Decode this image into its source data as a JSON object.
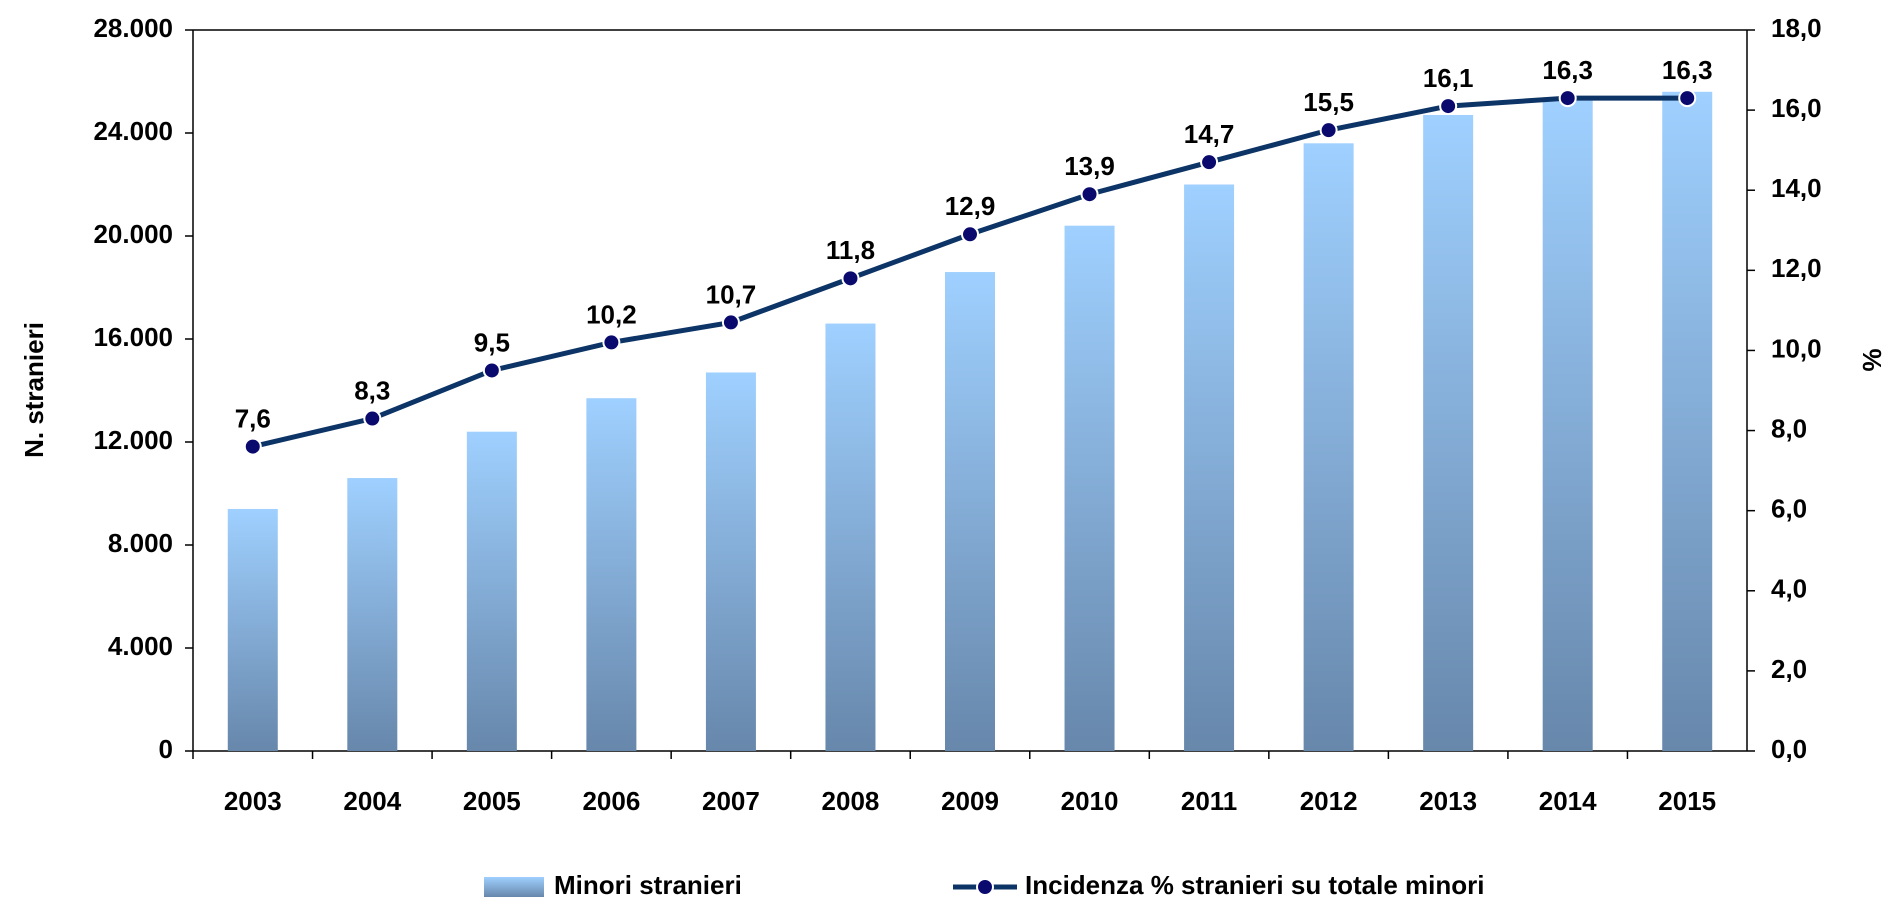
{
  "chart_data": {
    "type": "combo",
    "categories": [
      "2003",
      "2004",
      "2005",
      "2006",
      "2007",
      "2008",
      "2009",
      "2010",
      "2011",
      "2012",
      "2013",
      "2014",
      "2015"
    ],
    "series": [
      {
        "name": "Minori stranieri",
        "type": "bar",
        "color": "#8fbfef",
        "values": [
          9400,
          10600,
          12400,
          13700,
          14700,
          16600,
          18600,
          20400,
          22000,
          23600,
          24700,
          25300,
          25600
        ]
      },
      {
        "name": "Incidenza % stranieri su totale minori",
        "type": "line",
        "axis": "y2",
        "color": "#0d3466",
        "values": [
          7.6,
          8.3,
          9.5,
          10.2,
          10.7,
          11.8,
          12.9,
          13.9,
          14.7,
          15.5,
          16.1,
          16.3,
          16.3
        ],
        "value_labels": [
          "7,6",
          "8,3",
          "9,5",
          "10,2",
          "10,7",
          "11,8",
          "12,9",
          "13,9",
          "14,7",
          "15,5",
          "16,1",
          "16,3",
          "16,3"
        ]
      }
    ],
    "y_label": "N. stranieri",
    "y2_label": "%",
    "ylim": [
      0,
      28000
    ],
    "yticks": [
      0,
      {
        "value": 4000,
        "label": "4.000"
      },
      {
        "value": 8000,
        "label": "8.000"
      },
      {
        "value": 12000,
        "label": "12.000"
      },
      {
        "value": 16000,
        "label": "16.000"
      },
      {
        "value": 20000,
        "label": "20.000"
      },
      {
        "value": 24000,
        "label": "24.000"
      },
      {
        "value": 28000,
        "label": "28.000"
      }
    ],
    "y2lim": [
      0,
      18
    ],
    "y2ticks": [
      {
        "value": 0,
        "label": "0,0"
      },
      {
        "value": 2,
        "label": "2,0"
      },
      {
        "value": 4,
        "label": "4,0"
      },
      {
        "value": 6,
        "label": "6,0"
      },
      {
        "value": 8,
        "label": "8,0"
      },
      {
        "value": 10,
        "label": "10,0"
      },
      {
        "value": 12,
        "label": "12,0"
      },
      {
        "value": 14,
        "label": "14,0"
      },
      {
        "value": 16,
        "label": "16,0"
      },
      {
        "value": 18,
        "label": "18,0"
      }
    ],
    "grid": false,
    "legend": "bottom"
  }
}
